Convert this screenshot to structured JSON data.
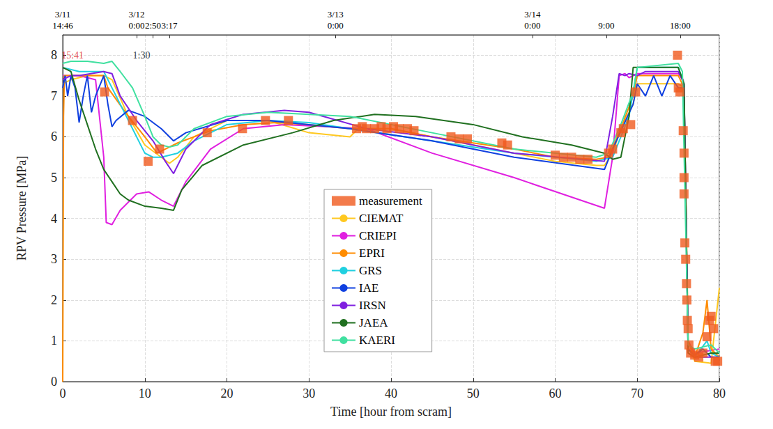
{
  "chart_data": {
    "type": "line",
    "x_label": "Time [hour from scram]",
    "y_label": "RPV Pressure [MPa]",
    "xlim": [
      0,
      80
    ],
    "xticks": [
      0,
      10,
      20,
      30,
      40,
      50,
      60,
      70,
      80
    ],
    "ylim": [
      0,
      8.5
    ],
    "yticks": [
      0,
      1,
      2,
      3,
      4,
      5,
      6,
      7,
      8
    ],
    "grid": true,
    "legend": "center",
    "top_ticks": [
      {
        "value": 0,
        "date": "3/11",
        "time": "14:46"
      },
      {
        "value": 9.0,
        "date": "3/12",
        "time": "0:00"
      },
      {
        "value": 11.0,
        "time": "2:50"
      },
      {
        "value": 13.0,
        "time": "3:17"
      },
      {
        "value": 33.23,
        "date": "3/13",
        "time": "0:00"
      },
      {
        "value": 57.23,
        "date": "3/14",
        "time": "0:00"
      },
      {
        "value": 66.23,
        "time": "9:00"
      },
      {
        "value": 75.23,
        "time": "18:00"
      }
    ],
    "annotations": [
      {
        "text": "15:41",
        "x": 1.2,
        "y": 8.0,
        "color": "#e02020"
      },
      {
        "text": "1:30",
        "x": 9.6,
        "y": 8.0,
        "color": "#000000"
      }
    ],
    "series": [
      {
        "name": "measurement",
        "type": "scatter",
        "marker": "square",
        "color": "#f05a1e",
        "x": [
          5.1,
          8.5,
          10.4,
          11.8,
          17.6,
          21.9,
          24.7,
          27.5,
          35.8,
          36.5,
          37,
          38,
          38.8,
          39.5,
          40.3,
          41,
          42,
          42.8,
          47.3,
          48.3,
          49.3,
          53.5,
          54.2,
          60,
          61,
          62,
          63,
          64,
          66.5,
          67,
          68,
          68.3,
          69.2,
          69.8,
          74.9,
          75,
          75.2,
          75.6,
          75.7,
          75.7,
          75.7,
          75.8,
          75.9,
          76,
          76.05,
          76.1,
          76.2,
          76.3,
          76.5,
          77,
          77.5,
          78,
          78.5,
          78.8,
          79,
          79.3,
          79.5,
          79.8
        ],
        "values": [
          7.1,
          6.4,
          5.4,
          5.7,
          6.1,
          6.2,
          6.4,
          6.4,
          6.2,
          6.25,
          6.2,
          6.2,
          6.25,
          6.2,
          6.25,
          6.2,
          6.2,
          6.15,
          6.0,
          5.95,
          5.95,
          5.85,
          5.8,
          5.55,
          5.5,
          5.5,
          5.45,
          5.45,
          5.6,
          5.7,
          6.1,
          6.2,
          6.3,
          7.1,
          8.0,
          7.2,
          7.1,
          6.15,
          5.6,
          5.0,
          4.6,
          3.4,
          3.0,
          2.4,
          2.0,
          1.5,
          1.3,
          0.9,
          0.7,
          0.65,
          0.6,
          0.7,
          1.1,
          1.5,
          1.6,
          1.3,
          0.5,
          0.5
        ]
      },
      {
        "name": "CIEMAT",
        "type": "line",
        "line_style": "solid",
        "color": "#ffc820",
        "x": [
          0,
          1,
          3,
          5,
          6,
          8,
          10,
          12,
          13,
          14,
          16,
          20,
          25,
          30,
          35,
          36,
          40,
          45,
          50,
          55,
          60,
          65,
          66,
          67,
          68,
          69.5,
          70,
          75,
          75.7,
          76.2,
          77,
          79,
          80
        ],
        "values": [
          7.3,
          7.4,
          7.5,
          7.5,
          7.4,
          6.5,
          5.8,
          5.5,
          5.35,
          5.5,
          6.0,
          6.4,
          6.4,
          6.1,
          6.0,
          6.2,
          6.2,
          6.0,
          5.8,
          5.6,
          5.4,
          5.3,
          5.3,
          5.6,
          6.2,
          6.8,
          7.3,
          7.3,
          7.2,
          1.0,
          0.5,
          0.45,
          2.3
        ]
      },
      {
        "name": "CRIEPI",
        "type": "line",
        "line_style": "solid",
        "color": "#e020e0",
        "x": [
          0,
          2,
          4,
          5,
          5.3,
          6,
          7,
          9,
          10.5,
          12,
          13.5,
          15,
          18,
          22,
          27,
          32,
          37,
          45,
          55,
          66,
          67,
          67.8,
          68.5,
          69,
          70,
          75,
          75.6,
          76.2,
          77,
          80
        ],
        "values": [
          7.5,
          7.5,
          7.4,
          5.5,
          3.9,
          3.85,
          4.2,
          4.6,
          4.65,
          4.45,
          4.3,
          4.9,
          5.7,
          6.2,
          6.3,
          6.25,
          6.2,
          5.6,
          5.0,
          4.25,
          5.5,
          7.5,
          7.55,
          7.45,
          7.55,
          7.55,
          7.4,
          1.0,
          0.7,
          0.8
        ]
      },
      {
        "name": "EPRI",
        "type": "line",
        "line_style": "solid",
        "color": "#ff8c00",
        "x": [
          0,
          0.1,
          0.2,
          5,
          5.5,
          8,
          10,
          11.5,
          14,
          18,
          22,
          26,
          30,
          35,
          40,
          45,
          50,
          55,
          60,
          65,
          66.5,
          68,
          69.5,
          70,
          75,
          75.7,
          76.2,
          77,
          78,
          78.5,
          79,
          80
        ],
        "values": [
          0,
          6.5,
          7.5,
          7.5,
          7.2,
          6.5,
          6.0,
          5.6,
          5.85,
          6.15,
          6.3,
          6.35,
          6.3,
          6.2,
          6.2,
          6.0,
          5.85,
          5.7,
          5.5,
          5.45,
          5.5,
          6.2,
          7.0,
          7.5,
          7.5,
          7.2,
          1.0,
          0.6,
          1.2,
          2.0,
          0.8,
          0.6
        ]
      },
      {
        "name": "GRS",
        "type": "line",
        "line_style": "solid",
        "color": "#20d0e0",
        "x": [
          0,
          2,
          5,
          6,
          8,
          10,
          11,
          12,
          14,
          16,
          20,
          25,
          30,
          35,
          45,
          55,
          65,
          67,
          69,
          70,
          75,
          75.7,
          76.2,
          77,
          78.5,
          79,
          80
        ],
        "values": [
          7.7,
          7.6,
          7.6,
          7.2,
          6.4,
          5.6,
          5.5,
          5.5,
          5.6,
          5.9,
          6.3,
          6.4,
          6.35,
          6.2,
          5.9,
          5.6,
          5.4,
          5.5,
          6.5,
          7.7,
          7.7,
          7.3,
          0.8,
          0.6,
          1.0,
          0.7,
          0.6
        ]
      },
      {
        "name": "IAE",
        "type": "line",
        "line_style": "solid",
        "color": "#1040e0",
        "x": [
          0,
          0.3,
          0.6,
          1,
          1.5,
          2,
          2.5,
          3,
          3.5,
          4,
          5,
          5.5,
          6,
          6.5,
          8,
          10,
          12,
          13.5,
          15,
          20,
          25,
          30,
          35,
          45,
          55,
          66,
          67,
          69.5,
          70,
          71,
          72,
          73,
          74,
          75,
          75.7,
          76.2,
          77,
          78,
          79,
          80
        ],
        "values": [
          7.2,
          7.5,
          7.0,
          7.5,
          7.2,
          6.35,
          7.0,
          7.5,
          6.6,
          7.0,
          7.5,
          6.8,
          6.25,
          6.4,
          6.65,
          6.5,
          6.2,
          5.9,
          6.1,
          6.4,
          6.4,
          6.3,
          6.2,
          5.9,
          5.5,
          5.2,
          5.7,
          6.8,
          7.3,
          7.0,
          7.5,
          7.0,
          7.5,
          7.2,
          7.2,
          0.8,
          0.65,
          0.8,
          0.6,
          0.6
        ]
      },
      {
        "name": "IRSN",
        "type": "line",
        "line_style": "solid",
        "color": "#8020e0",
        "x": [
          0,
          1,
          2,
          5,
          6,
          7,
          9,
          11,
          12.5,
          13.5,
          15,
          18,
          22,
          27,
          30,
          37,
          45,
          55,
          66,
          67,
          67.8,
          68.5,
          69,
          70,
          71,
          75,
          75.7,
          76.2,
          77,
          80
        ],
        "values": [
          7.4,
          7.5,
          7.5,
          7.6,
          7.55,
          7.0,
          6.4,
          5.9,
          5.4,
          5.1,
          5.7,
          6.3,
          6.55,
          6.65,
          6.6,
          6.2,
          6.0,
          5.6,
          5.4,
          6.5,
          7.55,
          7.5,
          7.55,
          7.5,
          7.6,
          7.6,
          7.3,
          0.7,
          0.6,
          0.6
        ]
      },
      {
        "name": "JAEA",
        "type": "line",
        "line_style": "solid",
        "color": "#207020",
        "x": [
          0,
          1,
          2,
          3,
          4,
          5,
          6,
          7,
          8,
          10,
          12,
          13.5,
          14.5,
          17,
          22,
          28,
          33,
          38,
          43,
          50,
          56,
          62,
          66,
          67,
          68,
          69,
          69.5,
          75,
          75.7,
          76.2,
          77,
          79,
          80
        ],
        "values": [
          7.7,
          7.6,
          6.9,
          6.3,
          5.7,
          5.2,
          4.9,
          4.6,
          4.45,
          4.3,
          4.25,
          4.2,
          4.7,
          5.3,
          5.8,
          6.1,
          6.4,
          6.55,
          6.5,
          6.3,
          6.0,
          5.8,
          5.6,
          5.45,
          5.5,
          6.5,
          7.7,
          7.7,
          7.3,
          0.7,
          0.6,
          0.7,
          0.7
        ]
      },
      {
        "name": "KAERI",
        "type": "line",
        "line_style": "solid",
        "color": "#40e0a0",
        "x": [
          0,
          1,
          3,
          5,
          6,
          7,
          8.5,
          10,
          11,
          12,
          13,
          14,
          16,
          20,
          25,
          30,
          35,
          45,
          55,
          65,
          66.5,
          68,
          69.5,
          70,
          75,
          75.5,
          76.2,
          77,
          79,
          80
        ],
        "values": [
          7.8,
          7.85,
          7.85,
          7.8,
          7.85,
          7.6,
          7.2,
          6.5,
          6.0,
          5.8,
          5.75,
          5.8,
          6.2,
          6.5,
          6.6,
          6.55,
          6.5,
          6.1,
          5.7,
          5.5,
          5.6,
          6.3,
          7.1,
          7.7,
          7.8,
          7.6,
          0.9,
          0.8,
          0.9,
          0.7
        ]
      }
    ]
  }
}
